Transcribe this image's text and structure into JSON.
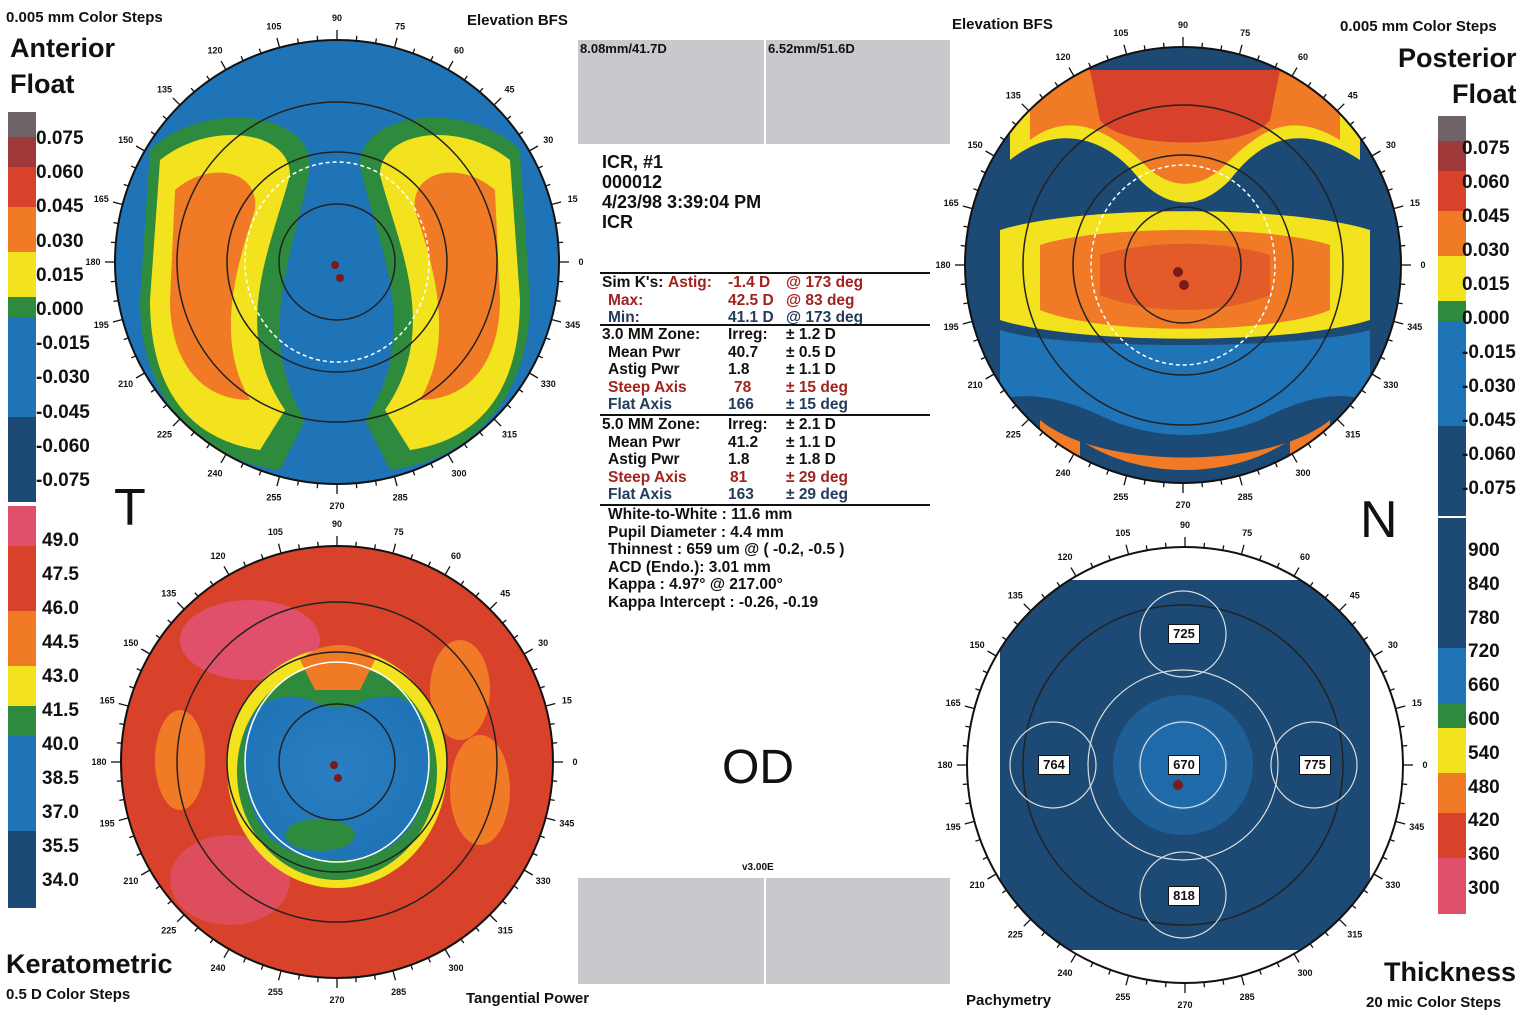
{
  "corners": {
    "top_left_steps": "0.005 mm Color Steps",
    "top_right_steps": "0.005 mm Color Steps",
    "bottom_left_steps": "0.5 D Color Steps",
    "bottom_right_steps": "20 mic Color Steps"
  },
  "map_titles": {
    "anterior_line1": "Anterior",
    "anterior_line2": "Float",
    "posterior_line1": "Posterior",
    "posterior_line2": "Float",
    "keratometric": "Keratometric",
    "thickness": "Thickness"
  },
  "map_captions": {
    "elevation_left": "Elevation BFS",
    "elevation_right": "Elevation BFS",
    "tangential": "Tangential Power",
    "pachymetry": "Pachymetry"
  },
  "orientation": {
    "temporal": "T",
    "nasal": "N",
    "eye": "OD"
  },
  "bfs_boxes": {
    "left": "8.08mm/41.7D",
    "right": "6.52mm/51.6D"
  },
  "version": "v3.00E",
  "patient": {
    "line1": "ICR, #1",
    "line2": "000012",
    "line3": "4/23/98 3:39:04 PM",
    "line4": "ICR"
  },
  "simk": {
    "label": "Sim K's:",
    "astig_label": "Astig:",
    "astig_value": "-1.4 D",
    "astig_axis": "@ 173 deg",
    "max_label": "Max:",
    "max_value": "42.5 D",
    "max_axis": "@ 83 deg",
    "min_label": "Min:",
    "min_value": "41.1 D",
    "min_axis": "@ 173 deg"
  },
  "zone3": {
    "title": "3.0 MM Zone:",
    "irreg_label": "Irreg:",
    "irreg_value": "± 1.2 D",
    "mean_label": "Mean Pwr",
    "mean_value": "40.7",
    "mean_pm": "± 0.5 D",
    "astig_label": "Astig Pwr",
    "astig_value": "1.8",
    "astig_pm": "± 1.1 D",
    "steep_label": "Steep Axis",
    "steep_value": "78",
    "steep_pm": "± 15 deg",
    "flat_label": "Flat Axis",
    "flat_value": "166",
    "flat_pm": "± 15 deg"
  },
  "zone5": {
    "title": "5.0 MM Zone:",
    "irreg_label": "Irreg:",
    "irreg_value": "± 2.1 D",
    "mean_label": "Mean Pwr",
    "mean_value": "41.2",
    "mean_pm": "± 1.1 D",
    "astig_label": "Astig Pwr",
    "astig_value": "1.8",
    "astig_pm": "± 1.8 D",
    "steep_label": "Steep Axis",
    "steep_value": "81",
    "steep_pm": "± 29 deg",
    "flat_label": "Flat Axis",
    "flat_value": "163",
    "flat_pm": "± 29 deg"
  },
  "measurements": {
    "white_to_white": "White-to-White : 11.6 mm",
    "pupil": "Pupil Diameter :  4.4 mm",
    "thinnest": "Thinnest : 659 um @ ( -0.2, -0.5 )",
    "acd": "ACD (Endo.): 3.01 mm",
    "kappa": "Kappa : 4.97° @ 217.00°",
    "kappa_intercept": "Kappa Intercept : -0.26, -0.19"
  },
  "scales": {
    "elevation": [
      "0.075",
      "0.060",
      "0.045",
      "0.030",
      "0.015",
      "0.000",
      "-0.015",
      "-0.030",
      "-0.045",
      "-0.060",
      "-0.075"
    ],
    "elevation_right": [
      "0.075",
      "0.060",
      "0.045",
      "0.030",
      "0.015",
      "0.000",
      "-0.015",
      "-0.030",
      "-0.045",
      "-0.060",
      "-0.075"
    ],
    "keratometric": [
      "49.0",
      "47.5",
      "46.0",
      "44.5",
      "43.0",
      "41.5",
      "40.0",
      "38.5",
      "37.0",
      "35.5",
      "34.0"
    ],
    "thickness": [
      "900",
      "840",
      "780",
      "720",
      "660",
      "600",
      "540",
      "480",
      "420",
      "360",
      "300"
    ]
  },
  "pachymetry_values": {
    "center": "670",
    "superior": "725",
    "temporal": "764",
    "nasal": "775",
    "inferior": "818"
  },
  "dial_labels": [
    "90",
    "105",
    "120",
    "135",
    "150",
    "165",
    "180",
    "195",
    "210",
    "225",
    "240",
    "255",
    "270",
    "285",
    "300",
    "315",
    "330",
    "345",
    "0",
    "15",
    "30",
    "45",
    "60",
    "75"
  ],
  "colors": {
    "red": "#d8412a",
    "orange": "#f07a26",
    "yellow": "#f2e31e",
    "green": "#2e8a3c",
    "blue": "#1f74b8",
    "dark_blue": "#1c4a74",
    "pink": "#e0506a",
    "gray": "#7c6f74"
  }
}
